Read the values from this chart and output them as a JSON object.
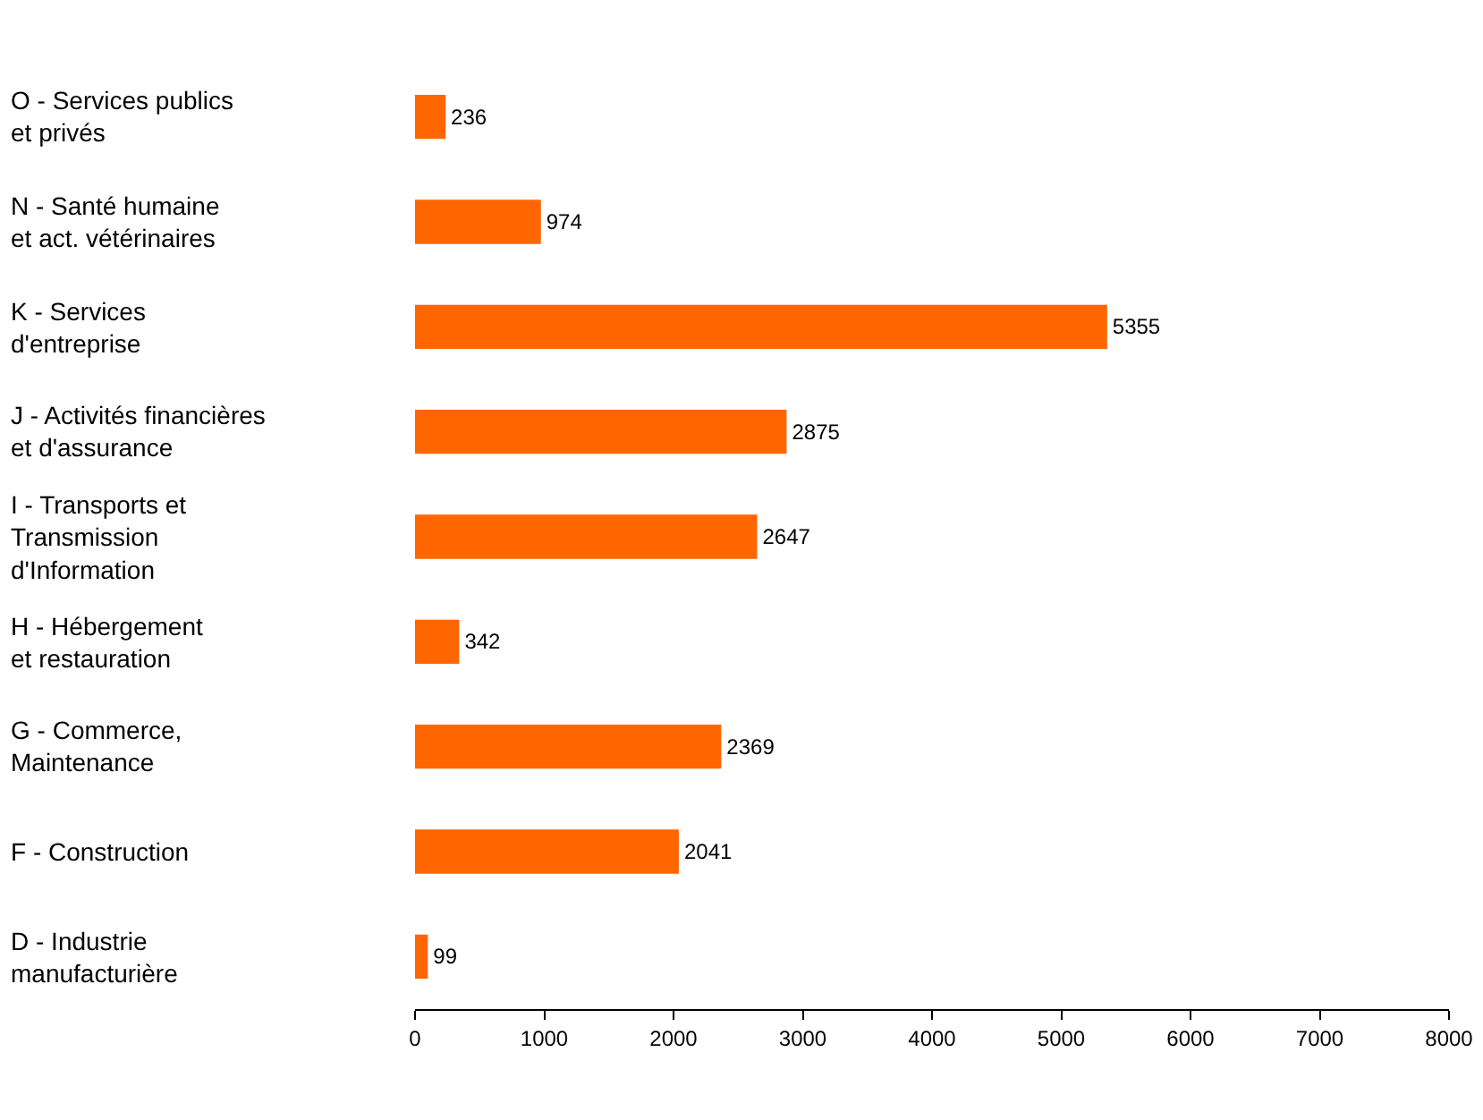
{
  "chart_data": {
    "type": "bar",
    "orientation": "horizontal",
    "categories": [
      "O - Services publics\net privés",
      "N - Santé humaine\net act. vétérinaires",
      "K - Services\nd'entreprise",
      "J - Activités financières\net d'assurance",
      "I - Transports et\nTransmission\nd'Information",
      "H - Hébergement\net restauration",
      "G - Commerce,\nMaintenance",
      "F - Construction",
      "D - Industrie\nmanufacturière"
    ],
    "values": [
      236,
      974,
      5355,
      2875,
      2647,
      342,
      2369,
      2041,
      99
    ],
    "color": "#ff6600",
    "xlim": [
      0,
      8000
    ],
    "xticks": [
      0,
      1000,
      2000,
      3000,
      4000,
      5000,
      6000,
      7000,
      8000
    ],
    "data_labels": true
  }
}
